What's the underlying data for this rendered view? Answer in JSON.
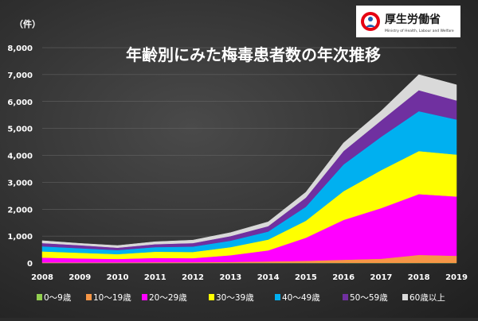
{
  "logo": {
    "name": "厚生労働省",
    "subtitle": "Ministry of Health, Labour and Welfare"
  },
  "chart_data": {
    "type": "area",
    "stacked": true,
    "title": "年齢別にみた梅毒患者数の年次推移",
    "unit_label": "（件）",
    "x": [
      "2008",
      "2009",
      "2010",
      "2011",
      "2012",
      "2013",
      "2014",
      "2015",
      "2016",
      "2017",
      "2018",
      "2019"
    ],
    "ylim": [
      0,
      8000
    ],
    "yticks": [
      "0",
      "1,000",
      "2,000",
      "3,000",
      "4,000",
      "5,000",
      "6,000",
      "7,000",
      "8,000"
    ],
    "ytick_values": [
      0,
      1000,
      2000,
      3000,
      4000,
      5000,
      6000,
      7000,
      8000
    ],
    "grid": true,
    "legend_position": "bottom",
    "series": [
      {
        "name": "0～9歳",
        "color": "#92d050",
        "values": [
          10,
          10,
          10,
          10,
          10,
          10,
          10,
          10,
          10,
          10,
          10,
          10
        ]
      },
      {
        "name": "10～19歳",
        "color": "#f79646",
        "values": [
          15,
          15,
          15,
          20,
          20,
          30,
          50,
          70,
          110,
          150,
          290,
          260
        ]
      },
      {
        "name": "20～29歳",
        "color": "#ff00ff",
        "values": [
          175,
          145,
          125,
          160,
          150,
          250,
          410,
          860,
          1480,
          1880,
          2260,
          2200
        ]
      },
      {
        "name": "30～39歳",
        "color": "#ffff00",
        "values": [
          230,
          210,
          180,
          230,
          230,
          300,
          400,
          630,
          1070,
          1410,
          1600,
          1560
        ]
      },
      {
        "name": "40～49歳",
        "color": "#00b0f0",
        "values": [
          190,
          170,
          150,
          170,
          200,
          240,
          300,
          520,
          990,
          1240,
          1480,
          1300
        ]
      },
      {
        "name": "50～59歳",
        "color": "#7030a0",
        "values": [
          120,
          110,
          90,
          110,
          130,
          170,
          200,
          340,
          500,
          610,
          780,
          710
        ]
      },
      {
        "name": "60歳以上",
        "color": "#d9d9d9",
        "values": [
          90,
          70,
          80,
          90,
          110,
          130,
          160,
          200,
          300,
          350,
          580,
          580
        ]
      }
    ]
  }
}
